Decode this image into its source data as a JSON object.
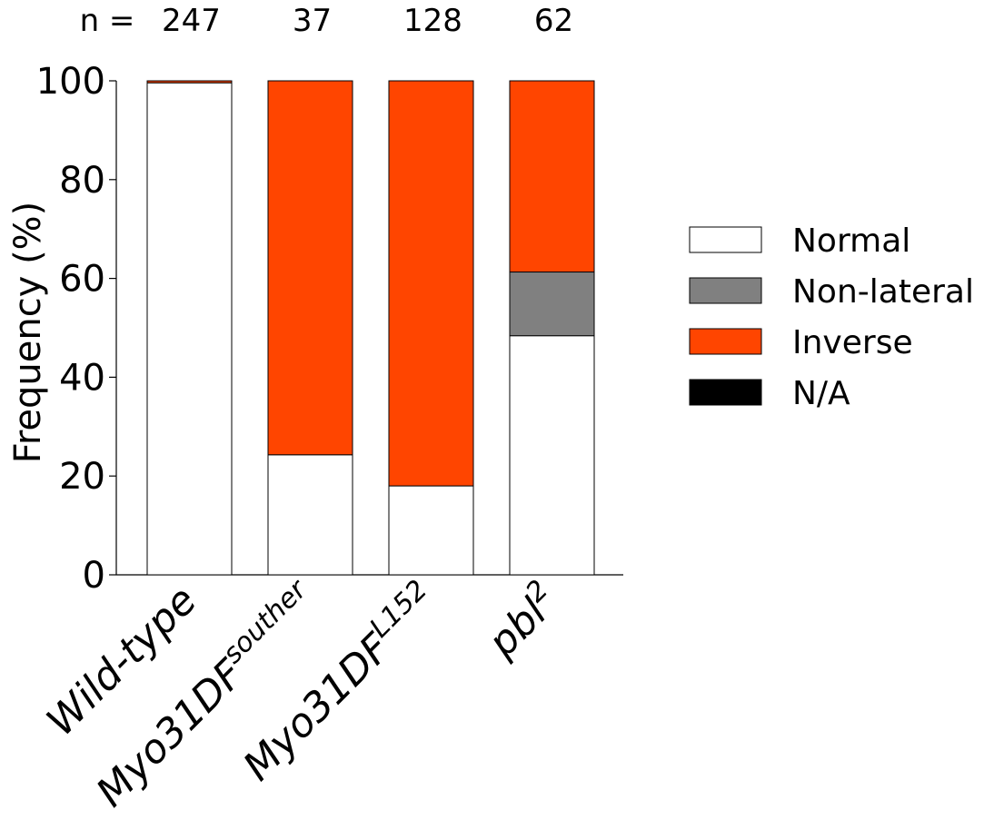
{
  "chart_data": {
    "type": "bar",
    "stacked": true,
    "title": "",
    "ylabel": "Frequency (%)",
    "xlabel": "",
    "ylim": [
      0,
      100
    ],
    "yticks": [
      0,
      20,
      40,
      60,
      80,
      100
    ],
    "n_label": "n =",
    "categories": [
      {
        "base": "Wild-type",
        "sup": "",
        "n": "247"
      },
      {
        "base": "Myo31DF",
        "sup": "souther",
        "n": "37"
      },
      {
        "base": "Myo31DF",
        "sup": "L152",
        "n": "128"
      },
      {
        "base": "pbl",
        "sup": "2",
        "n": "62"
      }
    ],
    "series": [
      {
        "name": "Normal",
        "color": "#ffffff",
        "values": [
          99.6,
          24.3,
          18.0,
          48.4
        ]
      },
      {
        "name": "Non-lateral",
        "color": "#808080",
        "values": [
          0,
          0,
          0,
          12.9
        ]
      },
      {
        "name": "Inverse",
        "color": "#ff4500",
        "values": [
          0.4,
          75.7,
          82.0,
          38.7
        ]
      },
      {
        "name": "N/A",
        "color": "#000000",
        "values": [
          0,
          0,
          0,
          0
        ]
      }
    ],
    "legend_position": "right",
    "grid": false
  }
}
